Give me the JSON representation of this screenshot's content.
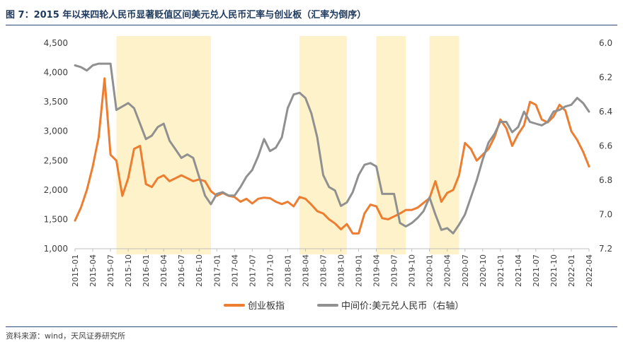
{
  "title": "图 7：2015 年以来四轮人民币显著贬值区间美元兑人民币汇率与创业板（汇率为倒序）",
  "source": "资料来源：wind，天风证券研究所",
  "chart_data": {
    "type": "line",
    "left_axis": {
      "ticks": [
        "4,500",
        "4,000",
        "3,500",
        "3,000",
        "2,500",
        "2,000",
        "1,500",
        "1,000"
      ],
      "min": 1000,
      "max": 4500
    },
    "right_axis": {
      "ticks": [
        "6.0",
        "6.2",
        "6.4",
        "6.6",
        "6.8",
        "7.0",
        "7.2"
      ],
      "min": 6.0,
      "max": 7.2,
      "reversed": true
    },
    "x_ticks": [
      "2015-01",
      "2015-04",
      "2015-07",
      "2015-10",
      "2016-01",
      "2016-04",
      "2016-07",
      "2016-10",
      "2017-01",
      "2017-04",
      "2017-07",
      "2017-10",
      "2018-01",
      "2018-04",
      "2018-07",
      "2018-10",
      "2019-01",
      "2019-04",
      "2019-07",
      "2019-10",
      "2020-01",
      "2020-04",
      "2020-07",
      "2020-10",
      "2021-01",
      "2021-04",
      "2021-07",
      "2021-10",
      "2022-01",
      "2022-04"
    ],
    "shaded_periods": [
      {
        "start": "2015-08",
        "end": "2016-12"
      },
      {
        "start": "2018-03",
        "end": "2018-11"
      },
      {
        "start": "2019-04",
        "end": "2019-09"
      },
      {
        "start": "2020-01",
        "end": "2020-06"
      }
    ],
    "series": [
      {
        "name": "创业板指",
        "axis": "left",
        "color": "#ed7d31",
        "points": [
          [
            "2015-01",
            1480
          ],
          [
            "2015-02",
            1700
          ],
          [
            "2015-03",
            2000
          ],
          [
            "2015-04",
            2400
          ],
          [
            "2015-05",
            2900
          ],
          [
            "2015-06",
            3900
          ],
          [
            "2015-07",
            2600
          ],
          [
            "2015-08",
            2500
          ],
          [
            "2015-09",
            1900
          ],
          [
            "2015-10",
            2200
          ],
          [
            "2015-11",
            2700
          ],
          [
            "2015-12",
            2750
          ],
          [
            "2016-01",
            2100
          ],
          [
            "2016-02",
            2050
          ],
          [
            "2016-03",
            2200
          ],
          [
            "2016-04",
            2250
          ],
          [
            "2016-05",
            2150
          ],
          [
            "2016-06",
            2200
          ],
          [
            "2016-07",
            2250
          ],
          [
            "2016-08",
            2200
          ],
          [
            "2016-09",
            2150
          ],
          [
            "2016-10",
            2180
          ],
          [
            "2016-11",
            2150
          ],
          [
            "2016-12",
            1980
          ],
          [
            "2017-01",
            1900
          ],
          [
            "2017-02",
            1950
          ],
          [
            "2017-03",
            1900
          ],
          [
            "2017-04",
            1880
          ],
          [
            "2017-05",
            1800
          ],
          [
            "2017-06",
            1850
          ],
          [
            "2017-07",
            1770
          ],
          [
            "2017-08",
            1850
          ],
          [
            "2017-09",
            1870
          ],
          [
            "2017-10",
            1860
          ],
          [
            "2017-11",
            1800
          ],
          [
            "2017-12",
            1760
          ],
          [
            "2018-01",
            1800
          ],
          [
            "2018-02",
            1720
          ],
          [
            "2018-03",
            1880
          ],
          [
            "2018-04",
            1850
          ],
          [
            "2018-05",
            1750
          ],
          [
            "2018-06",
            1640
          ],
          [
            "2018-07",
            1600
          ],
          [
            "2018-08",
            1500
          ],
          [
            "2018-09",
            1430
          ],
          [
            "2018-10",
            1330
          ],
          [
            "2018-11",
            1420
          ],
          [
            "2018-12",
            1260
          ],
          [
            "2019-01",
            1260
          ],
          [
            "2019-02",
            1600
          ],
          [
            "2019-03",
            1750
          ],
          [
            "2019-04",
            1720
          ],
          [
            "2019-05",
            1520
          ],
          [
            "2019-06",
            1500
          ],
          [
            "2019-07",
            1550
          ],
          [
            "2019-08",
            1600
          ],
          [
            "2019-09",
            1660
          ],
          [
            "2019-10",
            1660
          ],
          [
            "2019-11",
            1700
          ],
          [
            "2019-12",
            1780
          ],
          [
            "2020-01",
            1860
          ],
          [
            "2020-02",
            2150
          ],
          [
            "2020-03",
            1800
          ],
          [
            "2020-04",
            1950
          ],
          [
            "2020-05",
            2000
          ],
          [
            "2020-06",
            2250
          ],
          [
            "2020-07",
            2800
          ],
          [
            "2020-08",
            2700
          ],
          [
            "2020-09",
            2500
          ],
          [
            "2020-10",
            2600
          ],
          [
            "2020-11",
            2700
          ],
          [
            "2020-12",
            2900
          ],
          [
            "2021-01",
            3200
          ],
          [
            "2021-02",
            3050
          ],
          [
            "2021-03",
            2750
          ],
          [
            "2021-04",
            2950
          ],
          [
            "2021-05",
            3100
          ],
          [
            "2021-06",
            3500
          ],
          [
            "2021-07",
            3450
          ],
          [
            "2021-08",
            3200
          ],
          [
            "2021-09",
            3150
          ],
          [
            "2021-10",
            3250
          ],
          [
            "2021-11",
            3450
          ],
          [
            "2021-12",
            3350
          ],
          [
            "2022-01",
            3000
          ],
          [
            "2022-02",
            2850
          ],
          [
            "2022-03",
            2650
          ],
          [
            "2022-04",
            2400
          ]
        ]
      },
      {
        "name": "中间价:美元兑人民币（右轴）",
        "axis": "right",
        "color": "#909090",
        "points": [
          [
            "2015-01",
            6.13
          ],
          [
            "2015-02",
            6.14
          ],
          [
            "2015-03",
            6.16
          ],
          [
            "2015-04",
            6.13
          ],
          [
            "2015-05",
            6.12
          ],
          [
            "2015-06",
            6.12
          ],
          [
            "2015-07",
            6.12
          ],
          [
            "2015-08",
            6.39
          ],
          [
            "2015-09",
            6.37
          ],
          [
            "2015-10",
            6.35
          ],
          [
            "2015-11",
            6.38
          ],
          [
            "2015-12",
            6.47
          ],
          [
            "2016-01",
            6.56
          ],
          [
            "2016-02",
            6.54
          ],
          [
            "2016-03",
            6.49
          ],
          [
            "2016-04",
            6.47
          ],
          [
            "2016-05",
            6.57
          ],
          [
            "2016-06",
            6.62
          ],
          [
            "2016-07",
            6.67
          ],
          [
            "2016-08",
            6.65
          ],
          [
            "2016-09",
            6.67
          ],
          [
            "2016-10",
            6.78
          ],
          [
            "2016-11",
            6.89
          ],
          [
            "2016-12",
            6.94
          ],
          [
            "2017-01",
            6.88
          ],
          [
            "2017-02",
            6.87
          ],
          [
            "2017-03",
            6.89
          ],
          [
            "2017-04",
            6.89
          ],
          [
            "2017-05",
            6.84
          ],
          [
            "2017-06",
            6.78
          ],
          [
            "2017-07",
            6.74
          ],
          [
            "2017-08",
            6.66
          ],
          [
            "2017-09",
            6.56
          ],
          [
            "2017-10",
            6.63
          ],
          [
            "2017-11",
            6.61
          ],
          [
            "2017-12",
            6.55
          ],
          [
            "2018-01",
            6.38
          ],
          [
            "2018-02",
            6.3
          ],
          [
            "2018-03",
            6.29
          ],
          [
            "2018-04",
            6.32
          ],
          [
            "2018-05",
            6.41
          ],
          [
            "2018-06",
            6.55
          ],
          [
            "2018-07",
            6.77
          ],
          [
            "2018-08",
            6.84
          ],
          [
            "2018-09",
            6.86
          ],
          [
            "2018-10",
            6.95
          ],
          [
            "2018-11",
            6.93
          ],
          [
            "2018-12",
            6.87
          ],
          [
            "2019-01",
            6.77
          ],
          [
            "2019-02",
            6.71
          ],
          [
            "2019-03",
            6.7
          ],
          [
            "2019-04",
            6.72
          ],
          [
            "2019-05",
            6.88
          ],
          [
            "2019-06",
            6.88
          ],
          [
            "2019-07",
            6.88
          ],
          [
            "2019-08",
            7.05
          ],
          [
            "2019-09",
            7.07
          ],
          [
            "2019-10",
            7.05
          ],
          [
            "2019-11",
            7.02
          ],
          [
            "2019-12",
            6.98
          ],
          [
            "2020-01",
            6.9
          ],
          [
            "2020-02",
            7.0
          ],
          [
            "2020-03",
            7.09
          ],
          [
            "2020-04",
            7.08
          ],
          [
            "2020-05",
            7.11
          ],
          [
            "2020-06",
            7.06
          ],
          [
            "2020-07",
            7.0
          ],
          [
            "2020-08",
            6.9
          ],
          [
            "2020-09",
            6.8
          ],
          [
            "2020-10",
            6.68
          ],
          [
            "2020-11",
            6.58
          ],
          [
            "2020-12",
            6.53
          ],
          [
            "2021-01",
            6.46
          ],
          [
            "2021-02",
            6.46
          ],
          [
            "2021-03",
            6.52
          ],
          [
            "2021-04",
            6.49
          ],
          [
            "2021-05",
            6.4
          ],
          [
            "2021-06",
            6.46
          ],
          [
            "2021-07",
            6.47
          ],
          [
            "2021-08",
            6.48
          ],
          [
            "2021-09",
            6.46
          ],
          [
            "2021-10",
            6.4
          ],
          [
            "2021-11",
            6.39
          ],
          [
            "2021-12",
            6.37
          ],
          [
            "2022-01",
            6.36
          ],
          [
            "2022-02",
            6.32
          ],
          [
            "2022-03",
            6.35
          ],
          [
            "2022-04",
            6.4
          ]
        ]
      }
    ],
    "legend": [
      "创业板指",
      "中间价:美元兑人民币（右轴）"
    ],
    "legend_position": "bottom"
  }
}
